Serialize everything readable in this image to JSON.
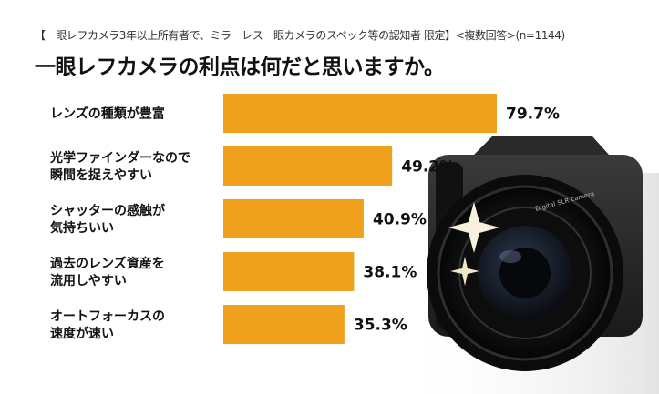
{
  "chart_data": {
    "type": "bar",
    "orientation": "horizontal",
    "subtitle": "【一眼レフカメラ3年以上所有者で、ミラーレス一眼カメラのスペック等の認知者 限定】<複数回答>(n=1144)",
    "title": "一眼レフカメラの利点は何だと思いますか。",
    "categories": [
      [
        "レンズの種類が豊富"
      ],
      [
        "光学ファインダーなので",
        "瞬間を捉えやすい"
      ],
      [
        "シャッターの感触が",
        "気持ちいい"
      ],
      [
        "過去のレンズ資産を",
        "流用しやすい"
      ],
      [
        "オートフォーカスの",
        "速度が速い"
      ]
    ],
    "values": [
      79.7,
      49.2,
      40.9,
      38.1,
      35.3
    ],
    "value_labels": [
      "79.7%",
      "49.2%",
      "40.9%",
      "38.1%",
      "35.3%"
    ],
    "xlim": [
      0,
      100
    ],
    "grid": false,
    "bar_color": "#EFA11E"
  },
  "camera": {
    "brand_text": "Digital SLR camera"
  }
}
